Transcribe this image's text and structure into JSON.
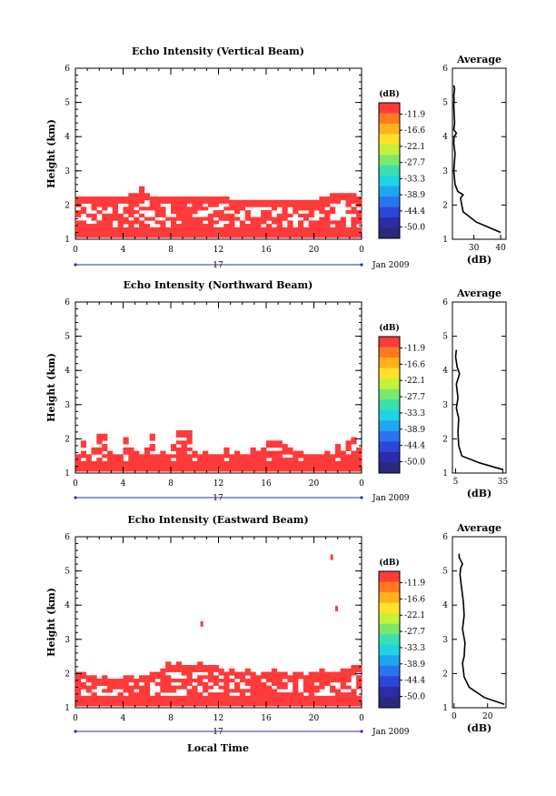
{
  "chart_data": [
    {
      "type": "heatmap",
      "title": "Echo Intensity (Vertical Beam)",
      "ylabel": "Height (km)",
      "xlim": [
        0,
        24
      ],
      "ylim": [
        1,
        6
      ],
      "x_ticks": [
        "0",
        "4",
        "8",
        "12",
        "16",
        "20",
        "0"
      ],
      "y_ticks": [
        "1",
        "2",
        "3",
        "4",
        "5",
        "6"
      ],
      "date_label": "17",
      "date_suffix": "Jan 2009",
      "colorbar": {
        "unit": "(dB)",
        "levels": [
          "-11.9",
          "-16.6",
          "-22.1",
          "-27.7",
          "-33.3",
          "-38.9",
          "-44.4",
          "-50.0"
        ]
      },
      "echo_top_km": [
        2.2,
        2.2,
        2.2,
        2.2,
        2.2,
        2.2,
        2.2,
        2.2,
        2.2,
        2.2,
        2.3,
        2.3,
        2.5,
        2.3,
        2.2,
        2.2,
        2.2,
        2.2,
        2.2,
        2.2,
        2.2,
        2.2,
        2.2,
        2.2,
        2.2,
        2.2,
        2.2,
        2.2,
        2.2,
        2.1,
        2.1,
        2.1,
        2.1,
        2.1,
        2.1,
        2.1,
        2.1,
        2.1,
        2.1,
        2.1,
        2.1,
        2.1,
        2.1,
        2.1,
        2.1,
        2.1,
        2.2,
        2.2,
        2.3,
        2.3,
        2.3,
        2.3,
        2.3,
        2.2
      ],
      "average_profile": {
        "title": "Average",
        "xlabel": "(dB)",
        "x_ticks": [
          "30",
          "40"
        ],
        "xlim": [
          22,
          42
        ],
        "height_km": [
          1.2,
          1.5,
          1.8,
          2.0,
          2.2,
          2.3,
          2.4,
          2.6,
          3.0,
          3.5,
          3.8,
          4.0,
          4.1,
          4.2,
          4.4,
          4.9,
          5.1,
          5.2,
          5.4,
          5.5
        ],
        "db": [
          40,
          31,
          26,
          25.5,
          25,
          26,
          24,
          23,
          22.5,
          23,
          22.5,
          22.6,
          23.5,
          22.5,
          22.8,
          22.5,
          22.6,
          22.5,
          22.8,
          22.5
        ]
      }
    },
    {
      "type": "heatmap",
      "title": "Echo Intensity (Northward Beam)",
      "ylabel": "Height (km)",
      "xlim": [
        0,
        24
      ],
      "ylim": [
        1,
        6
      ],
      "x_ticks": [
        "0",
        "4",
        "8",
        "12",
        "16",
        "20",
        "0"
      ],
      "y_ticks": [
        "1",
        "2",
        "3",
        "4",
        "5",
        "6"
      ],
      "date_label": "17",
      "date_suffix": "Jan 2009",
      "colorbar": {
        "unit": "(dB)",
        "levels": [
          "-11.9",
          "-16.6",
          "-22.1",
          "-27.7",
          "-33.3",
          "-38.9",
          "-44.4",
          "-50.0"
        ]
      },
      "echo_top_km": [
        1.5,
        1.9,
        1.5,
        1.7,
        2.1,
        2.1,
        1.6,
        1.5,
        1.5,
        2.0,
        1.7,
        1.6,
        1.5,
        1.7,
        2.1,
        1.5,
        1.6,
        1.5,
        1.8,
        2.2,
        2.2,
        2.2,
        1.6,
        1.5,
        1.6,
        1.5,
        1.5,
        1.5,
        1.7,
        1.5,
        1.6,
        1.5,
        1.5,
        1.7,
        1.6,
        1.7,
        1.9,
        1.9,
        1.9,
        1.8,
        1.7,
        1.6,
        1.6,
        1.5,
        1.5,
        1.5,
        1.5,
        1.6,
        1.5,
        1.8,
        1.6,
        1.9,
        2.0,
        1.7
      ],
      "average_profile": {
        "title": "Average",
        "xlabel": "(dB)",
        "x_ticks": [
          "5",
          "35"
        ],
        "xlim": [
          3,
          37
        ],
        "height_km": [
          1.1,
          1.3,
          1.5,
          1.8,
          2.2,
          2.6,
          2.9,
          3.2,
          3.6,
          3.9,
          4.1,
          4.4,
          4.6
        ],
        "db": [
          35,
          20,
          9,
          7,
          6.5,
          7,
          5.5,
          6.5,
          5.5,
          7.5,
          6,
          5,
          5.5
        ]
      }
    },
    {
      "type": "heatmap",
      "title": "Echo Intensity (Eastward Beam)",
      "ylabel": "Height (km)",
      "xlabel": "Local Time",
      "xlim": [
        0,
        24
      ],
      "ylim": [
        1,
        6
      ],
      "x_ticks": [
        "0",
        "4",
        "8",
        "12",
        "16",
        "20",
        "0"
      ],
      "y_ticks": [
        "1",
        "2",
        "3",
        "4",
        "5",
        "6"
      ],
      "date_label": "17",
      "date_suffix": "Jan 2009",
      "colorbar": {
        "unit": "(dB)",
        "levels": [
          "-11.9",
          "-16.6",
          "-22.1",
          "-27.7",
          "-33.3",
          "-38.9",
          "-44.4",
          "-50.0"
        ]
      },
      "echo_top_km": [
        2.0,
        2.0,
        1.9,
        1.9,
        1.8,
        1.9,
        1.8,
        1.8,
        1.8,
        1.9,
        1.9,
        1.8,
        1.9,
        1.9,
        2.0,
        2.0,
        2.1,
        2.3,
        2.2,
        2.3,
        2.2,
        2.2,
        2.2,
        2.3,
        2.2,
        2.2,
        2.2,
        2.1,
        2.0,
        2.1,
        2.0,
        2.0,
        2.1,
        2.0,
        1.9,
        2.0,
        2.0,
        2.1,
        2.0,
        2.0,
        1.9,
        2.0,
        2.0,
        1.9,
        2.0,
        2.0,
        2.1,
        2.0,
        2.0,
        2.0,
        2.1,
        2.1,
        2.2,
        2.2
      ],
      "isolated_echoes": [
        {
          "x": 21.5,
          "y": 5.4
        },
        {
          "x": 21.9,
          "y": 3.9
        },
        {
          "x": 10.6,
          "y": 3.45
        }
      ],
      "average_profile": {
        "title": "Average",
        "xlabel": "(dB)",
        "x_ticks": [
          "0",
          "20"
        ],
        "xlim": [
          -1,
          31
        ],
        "height_km": [
          1.1,
          1.3,
          1.6,
          1.9,
          2.3,
          2.5,
          2.9,
          3.3,
          3.7,
          4.1,
          4.5,
          4.9,
          5.1,
          5.2,
          5.4,
          5.5
        ],
        "db": [
          30,
          18,
          9,
          6,
          5,
          6,
          6.5,
          5,
          6,
          5.5,
          4.5,
          3.5,
          4,
          5,
          3,
          3
        ]
      }
    }
  ]
}
